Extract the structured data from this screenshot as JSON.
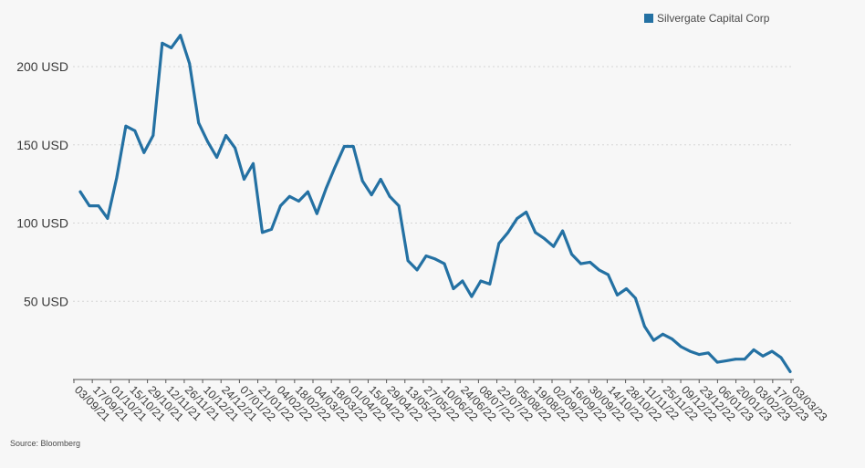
{
  "chart_data": {
    "type": "line",
    "title": "",
    "xlabel": "",
    "ylabel": "",
    "ylim": [
      0,
      230
    ],
    "y_ticks": [
      50,
      100,
      150,
      200
    ],
    "y_tick_labels": [
      "50 USD",
      "100 USD",
      "150 USD",
      "200 USD"
    ],
    "x_tick_labels": [
      "03/09/21",
      "17/09/21",
      "01/10/21",
      "15/10/21",
      "29/10/21",
      "12/11/21",
      "26/11/21",
      "10/12/21",
      "24/12/21",
      "07/01/22",
      "21/01/22",
      "04/02/22",
      "18/02/22",
      "04/03/22",
      "18/03/22",
      "01/04/22",
      "15/04/22",
      "29/04/22",
      "13/05/22",
      "27/05/22",
      "10/06/22",
      "24/06/22",
      "08/07/22",
      "22/07/22",
      "05/08/22",
      "19/08/22",
      "02/09/22",
      "16/09/22",
      "30/09/22",
      "14/10/22",
      "28/10/22",
      "11/11/22",
      "25/11/22",
      "09/12/22",
      "23/12/22",
      "06/01/23",
      "20/01/23",
      "03/02/23",
      "17/02/23",
      "03/03/23"
    ],
    "grid": true,
    "legend_position": "top-right",
    "series": [
      {
        "name": "Silvergate Capital Corp",
        "color": "#2471a3",
        "values": [
          120,
          111,
          111,
          103,
          129,
          162,
          159,
          145,
          156,
          215,
          212,
          220,
          202,
          164,
          152,
          142,
          156,
          148,
          128,
          138,
          94,
          96,
          111,
          117,
          114,
          120,
          106,
          122,
          136,
          149,
          149,
          127,
          118,
          128,
          117,
          111,
          76,
          70,
          79,
          77,
          74,
          58,
          63,
          53,
          63,
          61,
          87,
          94,
          103,
          107,
          94,
          90,
          85,
          95,
          80,
          74,
          75,
          70,
          67,
          54,
          58,
          52,
          34,
          25,
          29,
          26,
          21,
          18,
          16,
          17,
          11,
          12,
          13,
          13,
          19,
          15,
          18,
          14,
          5
        ]
      }
    ]
  },
  "legend": {
    "label": "Silvergate Capital Corp"
  },
  "source": "Source: Bloomberg"
}
